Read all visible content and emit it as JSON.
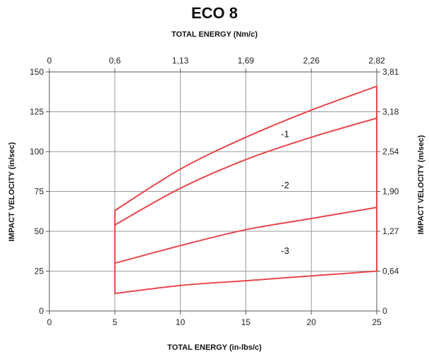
{
  "chart_data": {
    "type": "line",
    "title": "ECO 8",
    "x_top_label": "TOTAL ENERGY (Nm/c)",
    "x_bottom_label": "TOTAL ENERGY (in-lbs/c)",
    "y_left_label": "IMPACT VELOCITY (in/sec)",
    "y_right_label": "IMPACT VELOCITY (m/sec)",
    "xlim": [
      0,
      25
    ],
    "ylim": [
      0,
      150
    ],
    "x_ticks": [
      "0",
      "5",
      "10",
      "15",
      "20",
      "25"
    ],
    "y_ticks": [
      "0",
      "25",
      "50",
      "75",
      "100",
      "125",
      "150"
    ],
    "x_top_ticks": [
      "0",
      "0,6",
      "1,13",
      "1,69",
      "2,26",
      "2,82"
    ],
    "y_right_ticks": [
      "0",
      "0,64",
      "1,27",
      "1,90",
      "2,54",
      "3,18",
      "3,81"
    ],
    "grid": true,
    "series": [
      {
        "name": "-1",
        "x": [
          5,
          10,
          15,
          20,
          25
        ],
        "y": [
          63,
          89,
          109,
          126,
          141
        ]
      },
      {
        "name": "-2",
        "x": [
          5,
          10,
          15,
          20,
          25
        ],
        "y": [
          54,
          77,
          95,
          109,
          121
        ]
      },
      {
        "name": "-3",
        "x": [
          5,
          10,
          15,
          20,
          25
        ],
        "y": [
          30,
          41,
          51,
          58,
          65
        ]
      },
      {
        "name": "",
        "x": [
          5,
          10,
          15,
          20,
          25
        ],
        "y": [
          11,
          16,
          19,
          22,
          25
        ]
      }
    ],
    "series_color": "#e8464c"
  }
}
